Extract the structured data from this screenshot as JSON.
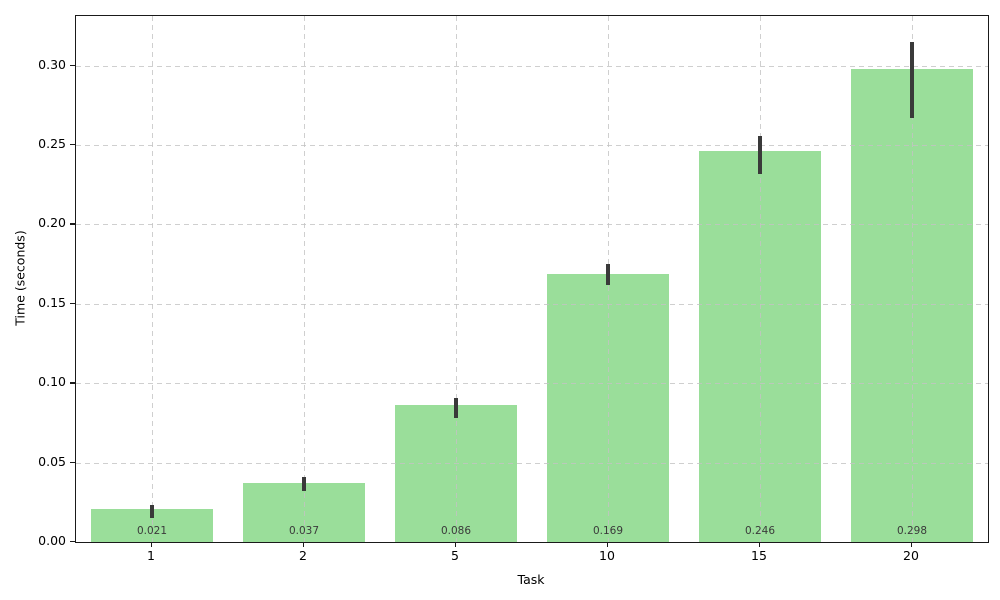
{
  "chart_data": {
    "type": "bar",
    "title": "",
    "xlabel": "Task",
    "ylabel": "Time (seconds)",
    "categories": [
      "1",
      "2",
      "5",
      "10",
      "15",
      "20"
    ],
    "values": [
      0.021,
      0.037,
      0.086,
      0.169,
      0.246,
      0.298
    ],
    "value_labels": [
      "0.021",
      "0.037",
      "0.086",
      "0.169",
      "0.246",
      "0.298"
    ],
    "error_low": [
      0.015,
      0.032,
      0.078,
      0.162,
      0.232,
      0.267
    ],
    "error_high": [
      0.023,
      0.041,
      0.091,
      0.175,
      0.256,
      0.315
    ],
    "ylim": [
      0,
      0.3313
    ],
    "yticks": [
      0,
      0.05,
      0.1,
      0.15,
      0.2,
      0.25,
      0.3
    ],
    "ytick_labels": [
      "0.00",
      "0.05",
      "0.10",
      "0.15",
      "0.20",
      "0.25",
      "0.30"
    ],
    "grid": true,
    "grid_style": "dashed",
    "legend": "none",
    "bar_color": "#9ade9a",
    "error_color": "#3a3a3a",
    "value_label_color": "#3a3a3a",
    "grid_color": "#c3c3c3",
    "axis_color": "#1a1a1a"
  }
}
